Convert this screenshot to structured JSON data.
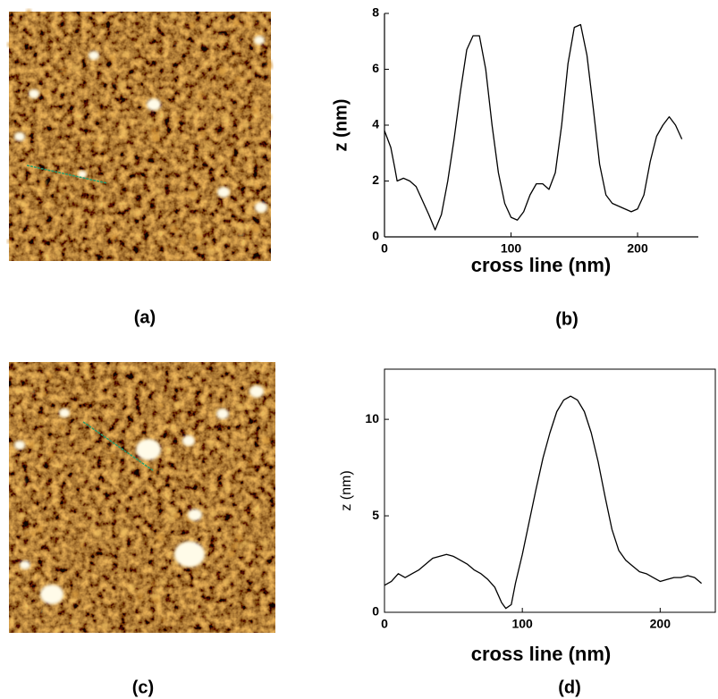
{
  "images": [
    {
      "label": "(a)"
    },
    {
      "label": "(c)"
    }
  ],
  "chart_data": [
    {
      "type": "line",
      "panel_label": "(b)",
      "xlabel": "cross line (nm)",
      "ylabel": "z (nm)",
      "color": "#000000",
      "box": false,
      "xlim": [
        0,
        248
      ],
      "ylim": [
        0,
        8
      ],
      "xticks": [
        0,
        100,
        200
      ],
      "yticks": [
        0,
        2,
        4,
        6,
        8
      ],
      "x": [
        0,
        5,
        8,
        10,
        15,
        20,
        25,
        30,
        35,
        40,
        45,
        50,
        55,
        60,
        65,
        70,
        75,
        80,
        85,
        90,
        95,
        100,
        105,
        110,
        115,
        120,
        125,
        130,
        135,
        140,
        145,
        150,
        155,
        160,
        165,
        170,
        175,
        180,
        185,
        190,
        195,
        200,
        205,
        210,
        215,
        220,
        225,
        230,
        235
      ],
      "values": [
        3.8,
        3.2,
        2.5,
        2.0,
        2.1,
        2.0,
        1.8,
        1.3,
        0.8,
        0.25,
        0.8,
        2.0,
        3.5,
        5.2,
        6.7,
        7.2,
        7.2,
        6.0,
        4.0,
        2.3,
        1.2,
        0.7,
        0.6,
        0.9,
        1.5,
        1.9,
        1.9,
        1.7,
        2.3,
        4.0,
        6.2,
        7.5,
        7.6,
        6.5,
        4.6,
        2.6,
        1.5,
        1.2,
        1.1,
        1.0,
        0.9,
        1.0,
        1.5,
        2.7,
        3.6,
        4.0,
        4.3,
        4.0,
        3.5
      ]
    },
    {
      "type": "line",
      "panel_label": "(d)",
      "xlabel": "cross line (nm)",
      "ylabel": "z (nm)",
      "color": "#000000",
      "box": true,
      "xlim": [
        0,
        240
      ],
      "ylim": [
        0,
        12.6
      ],
      "xticks": [
        0,
        100,
        200
      ],
      "yticks": [
        0,
        5,
        10
      ],
      "x": [
        0,
        5,
        10,
        15,
        20,
        25,
        30,
        35,
        40,
        45,
        50,
        55,
        60,
        65,
        70,
        75,
        80,
        85,
        88,
        92,
        95,
        100,
        105,
        110,
        115,
        120,
        125,
        130,
        135,
        140,
        145,
        150,
        155,
        160,
        165,
        170,
        175,
        180,
        185,
        190,
        195,
        200,
        205,
        210,
        215,
        220,
        225,
        230
      ],
      "values": [
        1.4,
        1.6,
        2.0,
        1.8,
        2.0,
        2.2,
        2.5,
        2.8,
        2.9,
        3.0,
        2.9,
        2.7,
        2.5,
        2.2,
        2.0,
        1.7,
        1.3,
        0.5,
        0.2,
        0.4,
        1.5,
        3.0,
        4.7,
        6.4,
        8.0,
        9.3,
        10.4,
        11.0,
        11.2,
        11.0,
        10.4,
        9.3,
        7.8,
        6.0,
        4.3,
        3.2,
        2.7,
        2.4,
        2.1,
        2.0,
        1.8,
        1.6,
        1.7,
        1.8,
        1.8,
        1.9,
        1.8,
        1.5
      ]
    }
  ]
}
